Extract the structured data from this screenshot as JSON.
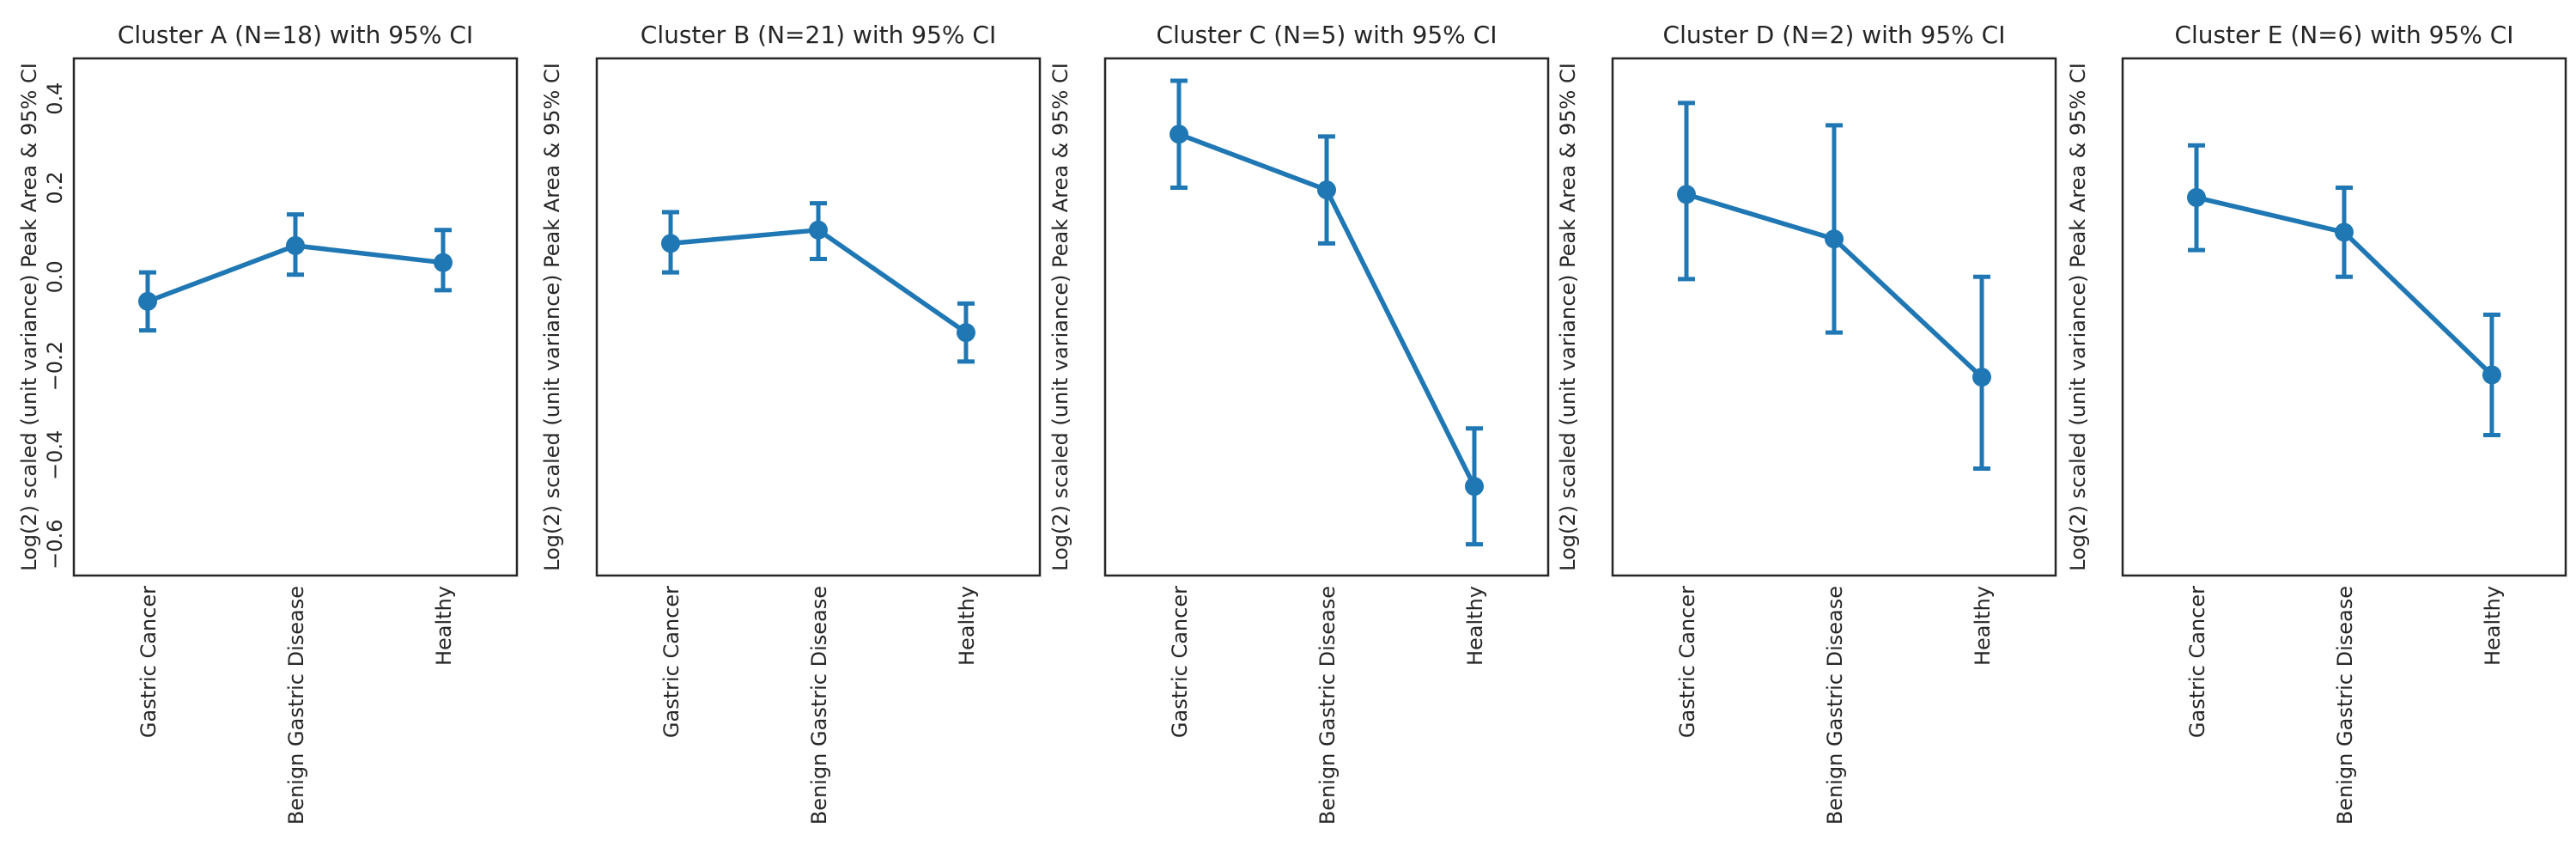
{
  "chart_data": {
    "type": "line",
    "ylabel": "Log(2) scaled (unit variance) Peak Area & 95% CI",
    "categories": [
      "Gastric Cancer",
      "Benign Gastric Disease",
      "Healthy"
    ],
    "ylim": [
      -0.67,
      0.49
    ],
    "yticks": [
      -0.6,
      -0.4,
      -0.2,
      0.0,
      0.2,
      0.4
    ],
    "yticklabels": [
      "−0.6",
      "−0.4",
      "−0.2",
      "0.0",
      "0.2",
      "0.4"
    ],
    "sharey": true,
    "color": "#1f77b4",
    "panels": [
      {
        "title": "Cluster A (N=18) with 95% CI",
        "values": [
          -0.055,
          0.07,
          0.032
        ],
        "ci_low": [
          -0.12,
          0.005,
          -0.03
        ],
        "ci_high": [
          0.01,
          0.14,
          0.105
        ]
      },
      {
        "title": "Cluster B (N=21) with 95% CI",
        "values": [
          0.075,
          0.105,
          -0.125
        ],
        "ci_low": [
          0.01,
          0.04,
          -0.19
        ],
        "ci_high": [
          0.145,
          0.165,
          -0.06
        ]
      },
      {
        "title": "Cluster C (N=5) with 95% CI",
        "values": [
          0.32,
          0.195,
          -0.47
        ],
        "ci_low": [
          0.2,
          0.075,
          -0.6
        ],
        "ci_high": [
          0.44,
          0.315,
          -0.34
        ]
      },
      {
        "title": "Cluster D (N=2) with 95% CI",
        "values": [
          0.185,
          0.085,
          -0.225
        ],
        "ci_low": [
          -0.005,
          -0.125,
          -0.43
        ],
        "ci_high": [
          0.39,
          0.34,
          0.0
        ]
      },
      {
        "title": "Cluster E (N=6) with 95% CI",
        "values": [
          0.178,
          0.1,
          -0.22
        ],
        "ci_low": [
          0.06,
          0.0,
          -0.355
        ],
        "ci_high": [
          0.295,
          0.2,
          -0.085
        ]
      }
    ]
  }
}
